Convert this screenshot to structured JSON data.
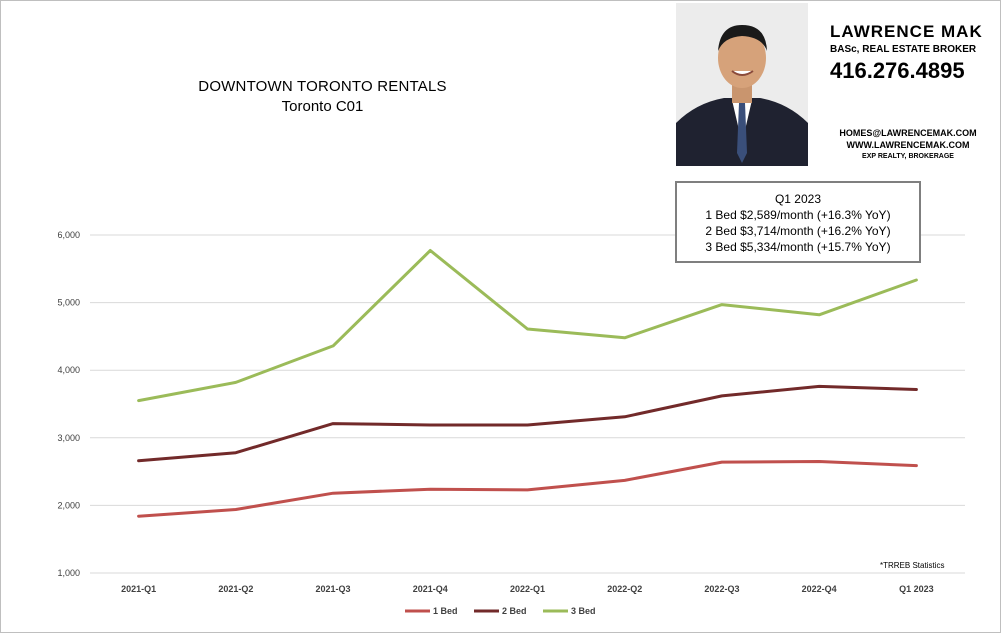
{
  "titles": {
    "line1": "DOWNTOWN TORONTO RENTALS",
    "line2": "Toronto C01"
  },
  "contact": {
    "name": "LAWRENCE MAK",
    "credentials": "BASc, REAL ESTATE BROKER",
    "phone": "416.276.4895",
    "email": "HOMES@LAWRENCEMAK.COM",
    "website": "WWW.LAWRENCEMAK.COM",
    "brokerage": "EXP REALTY, BROKERAGE"
  },
  "summary": {
    "heading": "Q1 2023",
    "lines": [
      "1 Bed $2,589/month  (+16.3%  YoY)",
      "2 Bed $3,714/month  (+16.2%  YoY)",
      "3 Bed $5,334/month  (+15.7%  YoY)"
    ]
  },
  "source_note": "*TRREB Statistics",
  "chart_data": {
    "type": "line",
    "title": "DOWNTOWN TORONTO RENTALS",
    "subtitle": "Toronto C01",
    "categories": [
      "2021-Q1",
      "2021-Q2",
      "2021-Q3",
      "2021-Q4",
      "2022-Q1",
      "2022-Q2",
      "2022-Q3",
      "2022-Q4",
      "Q1 2023"
    ],
    "ylim": [
      1000,
      6000
    ],
    "yticks": [
      1000,
      2000,
      3000,
      4000,
      5000,
      6000
    ],
    "ytick_labels": [
      "1,000",
      "2,000",
      "3,000",
      "4,000",
      "5,000",
      "6,000"
    ],
    "grid": true,
    "legend_position": "bottom",
    "series": [
      {
        "name": "1 Bed",
        "color": "#c0504d",
        "values": [
          1840,
          1940,
          2180,
          2240,
          2230,
          2370,
          2640,
          2650,
          2589
        ]
      },
      {
        "name": "2 Bed",
        "color": "#722a2a",
        "values": [
          2660,
          2780,
          3210,
          3190,
          3190,
          3310,
          3620,
          3760,
          3714
        ]
      },
      {
        "name": "3 Bed",
        "color": "#9bbb59",
        "values": [
          3550,
          3820,
          4360,
          5770,
          4610,
          4480,
          4970,
          4820,
          5334
        ]
      }
    ]
  }
}
